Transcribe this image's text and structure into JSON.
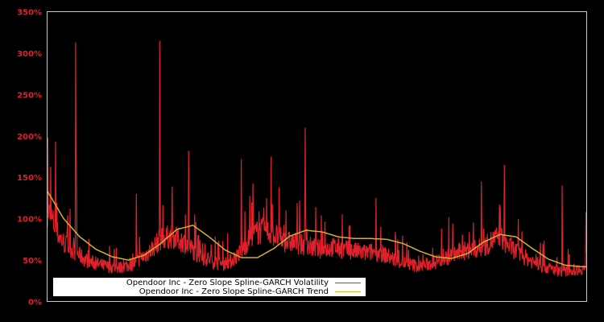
{
  "chart_data": {
    "type": "line",
    "title": "",
    "xlabel": "",
    "ylabel": "",
    "ylim": [
      0,
      350
    ],
    "y_ticks": [
      "0%",
      "50%",
      "100%",
      "150%",
      "200%",
      "250%",
      "300%",
      "350%"
    ],
    "x_ticks": [],
    "grid": false,
    "legend_position": "lower-left",
    "background": "#000000",
    "axis_color": "#c8c8c8",
    "tick_color": "#e0202a",
    "series": [
      {
        "name": "Opendoor Inc - Zero Slope Spline-GARCH Volatility",
        "color": "#e0202a",
        "x_frac": [
          0.0,
          0.01,
          0.02,
          0.03,
          0.05,
          0.07,
          0.09,
          0.11,
          0.13,
          0.16,
          0.19,
          0.21,
          0.23,
          0.25,
          0.26,
          0.28,
          0.3,
          0.32,
          0.34,
          0.36,
          0.38,
          0.4,
          0.42,
          0.44,
          0.46,
          0.47,
          0.49,
          0.51,
          0.53,
          0.55,
          0.57,
          0.59,
          0.61,
          0.63,
          0.65,
          0.67,
          0.69,
          0.71,
          0.73,
          0.75,
          0.77,
          0.79,
          0.81,
          0.83,
          0.84,
          0.85,
          0.86,
          0.88,
          0.9,
          0.92,
          0.94,
          0.96,
          0.98,
          1.0
        ],
        "values": [
          110,
          95,
          80,
          70,
          60,
          50,
          45,
          42,
          40,
          45,
          60,
          75,
          78,
          72,
          68,
          55,
          50,
          45,
          48,
          60,
          80,
          85,
          80,
          72,
          70,
          68,
          65,
          62,
          65,
          62,
          60,
          58,
          60,
          55,
          48,
          45,
          42,
          45,
          50,
          55,
          60,
          62,
          65,
          75,
          78,
          70,
          65,
          55,
          48,
          42,
          38,
          36,
          38,
          40
        ],
        "spikes": [
          {
            "x_frac": 0.001,
            "value": 198
          },
          {
            "x_frac": 0.015,
            "value": 193
          },
          {
            "x_frac": 0.052,
            "value": 313
          },
          {
            "x_frac": 0.054,
            "value": 165
          },
          {
            "x_frac": 0.165,
            "value": 130
          },
          {
            "x_frac": 0.208,
            "value": 315
          },
          {
            "x_frac": 0.262,
            "value": 182
          },
          {
            "x_frac": 0.36,
            "value": 172
          },
          {
            "x_frac": 0.415,
            "value": 175
          },
          {
            "x_frac": 0.43,
            "value": 138
          },
          {
            "x_frac": 0.478,
            "value": 210
          },
          {
            "x_frac": 0.61,
            "value": 125
          },
          {
            "x_frac": 0.745,
            "value": 102
          },
          {
            "x_frac": 0.805,
            "value": 145
          },
          {
            "x_frac": 0.848,
            "value": 165
          },
          {
            "x_frac": 0.955,
            "value": 140
          },
          {
            "x_frac": 0.999,
            "value": 108
          }
        ]
      },
      {
        "name": "Opendoor Inc - Zero Slope Spline-GARCH Trend",
        "color": "#d4b030",
        "x_frac": [
          0.0,
          0.03,
          0.06,
          0.09,
          0.12,
          0.15,
          0.18,
          0.21,
          0.24,
          0.27,
          0.3,
          0.33,
          0.36,
          0.39,
          0.42,
          0.45,
          0.48,
          0.51,
          0.54,
          0.57,
          0.6,
          0.63,
          0.66,
          0.69,
          0.72,
          0.75,
          0.78,
          0.81,
          0.84,
          0.87,
          0.9,
          0.93,
          0.96,
          0.99,
          1.0
        ],
        "values": [
          133,
          100,
          78,
          63,
          54,
          50,
          56,
          70,
          87,
          92,
          78,
          62,
          53,
          53,
          64,
          79,
          86,
          84,
          78,
          76,
          76,
          75,
          70,
          61,
          54,
          52,
          58,
          72,
          81,
          78,
          64,
          51,
          44,
          42,
          42
        ]
      }
    ]
  },
  "legend": {
    "items": [
      {
        "label": "Opendoor Inc - Zero Slope Spline-GARCH Volatility",
        "color": "#e0202a"
      },
      {
        "label": "Opendoor Inc - Zero Slope Spline-GARCH Trend",
        "color": "#d4b030"
      }
    ]
  }
}
